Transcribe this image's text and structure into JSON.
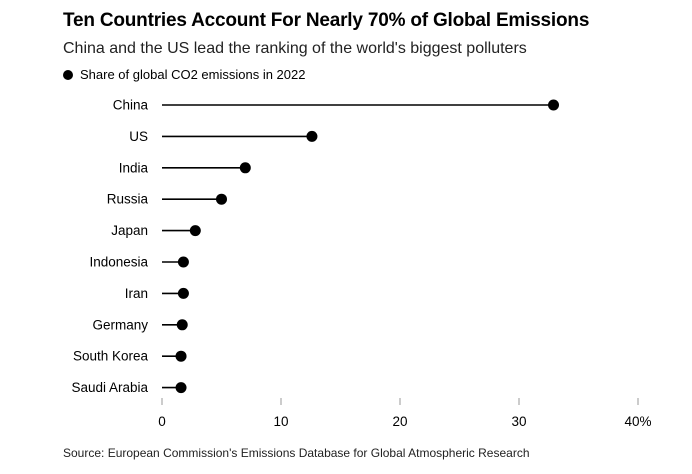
{
  "chart_data": {
    "type": "lollipop",
    "title": "Ten Countries Account For Nearly 70% of Global Emissions",
    "subtitle": "China and the US lead the ranking of the world's biggest polluters",
    "legend": "Share of global CO2 emissions in 2022",
    "categories": [
      "China",
      "US",
      "India",
      "Russia",
      "Japan",
      "Indonesia",
      "Iran",
      "Germany",
      "South Korea",
      "Saudi Arabia"
    ],
    "series": [
      {
        "name": "Share of global CO2 emissions in 2022",
        "values": [
          32.9,
          12.6,
          7.0,
          5.0,
          2.8,
          1.8,
          1.8,
          1.7,
          1.6,
          1.6
        ]
      }
    ],
    "x_ticks": [
      "0",
      "10",
      "20",
      "30",
      "40%"
    ],
    "xlim": [
      0,
      40
    ],
    "grid": false,
    "legend_position": "top-left",
    "source": "Source: European Commission's Emissions Database for Global Atmospheric Research",
    "colors": {
      "mark": "#000000",
      "axis_tick": "#999999"
    }
  }
}
